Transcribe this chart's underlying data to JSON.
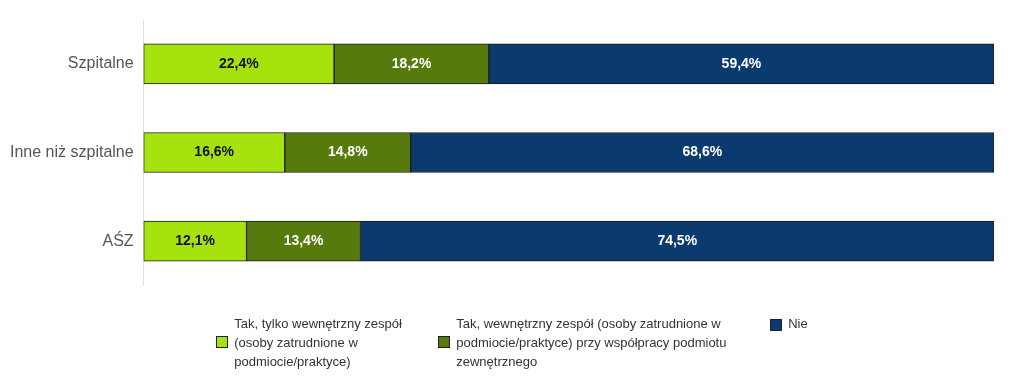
{
  "chart_data": {
    "type": "bar",
    "orientation": "horizontal",
    "stacked": true,
    "categories": [
      "Szpitalne",
      "Inne niż szpitalne",
      "AŚZ"
    ],
    "xlim": [
      0,
      100
    ],
    "tick_labels": "y",
    "grid": false,
    "legend": "bottom",
    "series": [
      {
        "name": "Tak, tylko wewnętrzny zespół (osoby zatrudnione w podmiocie/praktyce)",
        "color": "#a6e20e",
        "values": [
          22.4,
          16.6,
          12.1
        ],
        "value_labels": [
          "22,4%",
          "16,6%",
          "12,1%"
        ]
      },
      {
        "name": "Tak, wewnętrzny zespół (osoby zatrudnione w podmiocie/praktyce) przy współpracy podmiotu zewnętrznego",
        "color": "#567a0b",
        "values": [
          18.2,
          14.8,
          13.4
        ],
        "value_labels": [
          "18,2%",
          "14,8%",
          "13,4%"
        ]
      },
      {
        "name": "Nie",
        "color": "#0b3a6e",
        "values": [
          59.4,
          68.6,
          74.5
        ],
        "value_labels": [
          "59,4%",
          "68,6%",
          "74,5%"
        ]
      }
    ]
  }
}
